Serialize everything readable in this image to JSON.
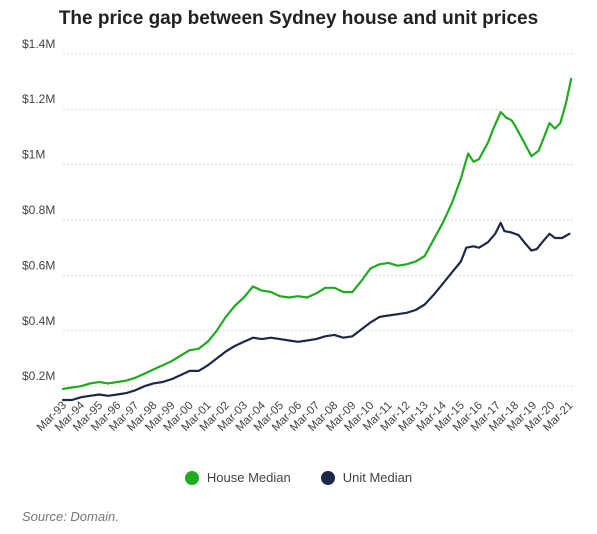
{
  "chart_data": {
    "type": "line",
    "title": "The price gap between Sydney house and unit prices",
    "source": "Source: Domain.",
    "y_ticks": [
      "$0.2M",
      "$0.4M",
      "$0.6M",
      "$0.8M",
      "$1M",
      "$1.2M",
      "$1.4M"
    ],
    "x_ticks": [
      "Mar-93",
      "Mar-94",
      "Mar-95",
      "Mar-96",
      "Mar-97",
      "Mar-98",
      "Mar-99",
      "Mar-00",
      "Mar-01",
      "Mar-02",
      "Mar-03",
      "Mar-04",
      "Mar-05",
      "Mar-06",
      "Mar-07",
      "Mar-08",
      "Mar-09",
      "Mar-10",
      "Mar-11",
      "Mar-12",
      "Mar-13",
      "Mar-14",
      "Mar-15",
      "Mar-16",
      "Mar-17",
      "Mar-18",
      "Mar-19",
      "Mar-20",
      "Mar-21"
    ],
    "ylim": [
      0.15,
      1.45
    ],
    "xlim": [
      1993.0,
      2021.2
    ],
    "grid": true,
    "legend_position": "bottom",
    "series": [
      {
        "name": "House Median",
        "color": "#1faa1f",
        "points": [
          [
            1993.0,
            0.19
          ],
          [
            1993.5,
            0.195
          ],
          [
            1994.0,
            0.2
          ],
          [
            1994.5,
            0.21
          ],
          [
            1995.0,
            0.215
          ],
          [
            1995.5,
            0.21
          ],
          [
            1996.0,
            0.215
          ],
          [
            1996.5,
            0.22
          ],
          [
            1997.0,
            0.23
          ],
          [
            1997.5,
            0.245
          ],
          [
            1998.0,
            0.26
          ],
          [
            1998.5,
            0.275
          ],
          [
            1999.0,
            0.29
          ],
          [
            1999.5,
            0.31
          ],
          [
            2000.0,
            0.33
          ],
          [
            2000.5,
            0.335
          ],
          [
            2001.0,
            0.36
          ],
          [
            2001.5,
            0.4
          ],
          [
            2002.0,
            0.45
          ],
          [
            2002.5,
            0.49
          ],
          [
            2003.0,
            0.52
          ],
          [
            2003.5,
            0.56
          ],
          [
            2004.0,
            0.545
          ],
          [
            2004.5,
            0.54
          ],
          [
            2005.0,
            0.525
          ],
          [
            2005.5,
            0.52
          ],
          [
            2006.0,
            0.525
          ],
          [
            2006.5,
            0.52
          ],
          [
            2007.0,
            0.535
          ],
          [
            2007.5,
            0.555
          ],
          [
            2008.0,
            0.555
          ],
          [
            2008.5,
            0.54
          ],
          [
            2009.0,
            0.54
          ],
          [
            2009.5,
            0.58
          ],
          [
            2010.0,
            0.625
          ],
          [
            2010.5,
            0.64
          ],
          [
            2011.0,
            0.645
          ],
          [
            2011.5,
            0.635
          ],
          [
            2012.0,
            0.64
          ],
          [
            2012.5,
            0.65
          ],
          [
            2013.0,
            0.67
          ],
          [
            2013.5,
            0.73
          ],
          [
            2014.0,
            0.79
          ],
          [
            2014.5,
            0.86
          ],
          [
            2015.0,
            0.95
          ],
          [
            2015.4,
            1.04
          ],
          [
            2015.7,
            1.01
          ],
          [
            2016.0,
            1.02
          ],
          [
            2016.5,
            1.08
          ],
          [
            2016.8,
            1.13
          ],
          [
            2017.2,
            1.19
          ],
          [
            2017.5,
            1.17
          ],
          [
            2017.8,
            1.16
          ],
          [
            2018.0,
            1.14
          ],
          [
            2018.5,
            1.08
          ],
          [
            2018.9,
            1.03
          ],
          [
            2019.3,
            1.05
          ],
          [
            2019.6,
            1.1
          ],
          [
            2019.9,
            1.15
          ],
          [
            2020.2,
            1.13
          ],
          [
            2020.5,
            1.15
          ],
          [
            2020.8,
            1.22
          ],
          [
            2021.1,
            1.31
          ]
        ]
      },
      {
        "name": "Unit Median",
        "color": "#1b2a49",
        "points": [
          [
            1993.0,
            0.15
          ],
          [
            1993.5,
            0.15
          ],
          [
            1994.0,
            0.16
          ],
          [
            1994.5,
            0.165
          ],
          [
            1995.0,
            0.17
          ],
          [
            1995.5,
            0.165
          ],
          [
            1996.0,
            0.17
          ],
          [
            1996.5,
            0.175
          ],
          [
            1997.0,
            0.185
          ],
          [
            1997.5,
            0.2
          ],
          [
            1998.0,
            0.21
          ],
          [
            1998.5,
            0.215
          ],
          [
            1999.0,
            0.225
          ],
          [
            1999.5,
            0.24
          ],
          [
            2000.0,
            0.255
          ],
          [
            2000.5,
            0.255
          ],
          [
            2001.0,
            0.275
          ],
          [
            2001.5,
            0.3
          ],
          [
            2002.0,
            0.325
          ],
          [
            2002.5,
            0.345
          ],
          [
            2003.0,
            0.36
          ],
          [
            2003.5,
            0.375
          ],
          [
            2004.0,
            0.37
          ],
          [
            2004.5,
            0.375
          ],
          [
            2005.0,
            0.37
          ],
          [
            2005.5,
            0.365
          ],
          [
            2006.0,
            0.36
          ],
          [
            2006.5,
            0.365
          ],
          [
            2007.0,
            0.37
          ],
          [
            2007.5,
            0.38
          ],
          [
            2008.0,
            0.385
          ],
          [
            2008.5,
            0.375
          ],
          [
            2009.0,
            0.38
          ],
          [
            2009.5,
            0.405
          ],
          [
            2010.0,
            0.43
          ],
          [
            2010.5,
            0.45
          ],
          [
            2011.0,
            0.455
          ],
          [
            2011.5,
            0.46
          ],
          [
            2012.0,
            0.465
          ],
          [
            2012.5,
            0.475
          ],
          [
            2013.0,
            0.495
          ],
          [
            2013.5,
            0.53
          ],
          [
            2014.0,
            0.57
          ],
          [
            2014.5,
            0.61
          ],
          [
            2015.0,
            0.65
          ],
          [
            2015.3,
            0.7
          ],
          [
            2015.7,
            0.705
          ],
          [
            2016.0,
            0.7
          ],
          [
            2016.5,
            0.72
          ],
          [
            2016.9,
            0.75
          ],
          [
            2017.2,
            0.79
          ],
          [
            2017.4,
            0.76
          ],
          [
            2017.8,
            0.755
          ],
          [
            2018.2,
            0.745
          ],
          [
            2018.5,
            0.72
          ],
          [
            2018.9,
            0.69
          ],
          [
            2019.2,
            0.695
          ],
          [
            2019.5,
            0.72
          ],
          [
            2019.9,
            0.75
          ],
          [
            2020.2,
            0.735
          ],
          [
            2020.6,
            0.735
          ],
          [
            2021.0,
            0.75
          ]
        ]
      }
    ]
  }
}
